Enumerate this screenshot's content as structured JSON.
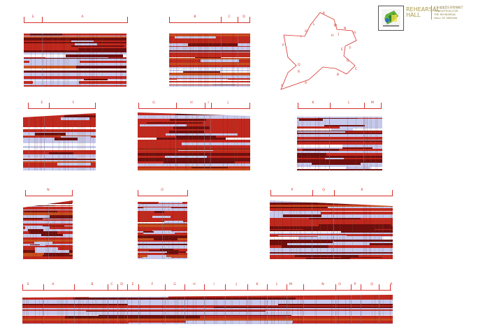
{
  "title": {
    "main": "REHEARSAL HALL",
    "sub": "广东省某音乐学院排练厅\nCONCEPTION FOR\nTHE REHEARSAL\nHALL OF XINGHAI"
  },
  "plan": {
    "labels": [
      "K",
      "L",
      "M",
      "N",
      "O",
      "J",
      "I",
      "H",
      "G",
      "F",
      "E",
      "D",
      "C",
      "B",
      "A",
      "S",
      "R",
      "Q",
      "P"
    ]
  },
  "colors": {
    "red": "#c0281e",
    "dark_red": "#6e0f0e",
    "orange": "#c8501e",
    "lavender": "#c6c9ec",
    "olive": "#7a6a2a",
    "accent": "#d6302b",
    "gold": "#a99a48"
  },
  "elevations": [
    {
      "id": "sab",
      "labels": [
        "S",
        "A",
        "B",
        "C",
        "D"
      ]
    },
    {
      "id": "ef",
      "labels": [
        "E",
        "F"
      ]
    },
    {
      "id": "ghij",
      "labels": [
        "G",
        "H",
        "I",
        "J"
      ]
    },
    {
      "id": "klm",
      "labels": [
        "K",
        "L",
        "M"
      ]
    },
    {
      "id": "n",
      "labels": [
        "N"
      ]
    },
    {
      "id": "o",
      "labels": [
        "O"
      ]
    },
    {
      "id": "pqr",
      "labels": [
        "P",
        "Q",
        "R"
      ]
    },
    {
      "id": "full",
      "labels": [
        "S",
        "A",
        "B",
        "C",
        "D",
        "E",
        "F",
        "G",
        "H",
        "I",
        "J",
        "K",
        "L",
        "M",
        "N",
        "O",
        "P",
        "Q",
        "R"
      ]
    }
  ]
}
